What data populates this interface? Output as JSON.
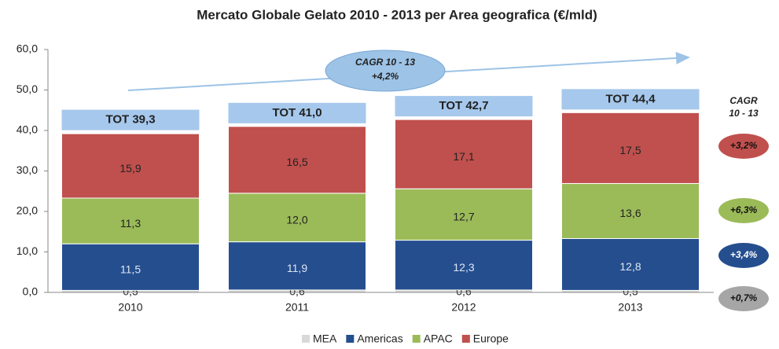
{
  "chart_data": {
    "type": "stacked_bar",
    "title": "Mercato Globale Gelato 2010 - 2013 per Area geografica (€/mld)",
    "categories": [
      "2010",
      "2011",
      "2012",
      "2013"
    ],
    "series": [
      {
        "name": "MEA",
        "color": "#d9d9d9",
        "values": [
          0.5,
          0.6,
          0.6,
          0.5
        ],
        "value_labels": [
          "0,5",
          "0,6",
          "0,6",
          "0,5"
        ],
        "cagr_label": "+0,7%",
        "cagr_color": "#a6a6a6"
      },
      {
        "name": "Americas",
        "color": "#254e8e",
        "values": [
          11.5,
          11.9,
          12.3,
          12.8
        ],
        "value_labels": [
          "11,5",
          "11,9",
          "12,3",
          "12,8"
        ],
        "cagr_label": "+3,4%",
        "cagr_color": "#254e8e"
      },
      {
        "name": "APAC",
        "color": "#9bbb59",
        "values": [
          11.3,
          12.0,
          12.7,
          13.6
        ],
        "value_labels": [
          "11,3",
          "12,0",
          "12,7",
          "13,6"
        ],
        "cagr_label": "+6,3%",
        "cagr_color": "#9bbb59"
      },
      {
        "name": "Europe",
        "color": "#c0504d",
        "values": [
          15.9,
          16.5,
          17.1,
          17.5
        ],
        "value_labels": [
          "15,9",
          "16,5",
          "17,1",
          "17,5"
        ],
        "cagr_label": "+3,2%",
        "cagr_color": "#c0504d"
      }
    ],
    "totals": {
      "color": "#a6c8ec",
      "values": [
        39.3,
        41.0,
        42.7,
        44.4
      ],
      "value_labels": [
        "TOT 39,3",
        "TOT 41,0",
        "TOT 42,7",
        "TOT 44,4"
      ]
    },
    "cagr_heading": [
      "CAGR",
      "10 - 13"
    ],
    "cagr_total": [
      "CAGR 10 - 13",
      "+4,2%"
    ],
    "ylim": [
      0,
      60
    ],
    "yticks": [
      {
        "value": 0,
        "label": "0,0"
      },
      {
        "value": 10,
        "label": "10,0"
      },
      {
        "value": 20,
        "label": "20,0"
      },
      {
        "value": 30,
        "label": "30,0"
      },
      {
        "value": 40,
        "label": "40,0"
      },
      {
        "value": 50,
        "label": "50,0"
      },
      {
        "value": 60,
        "label": "60,0"
      }
    ],
    "legend": "bottom"
  }
}
